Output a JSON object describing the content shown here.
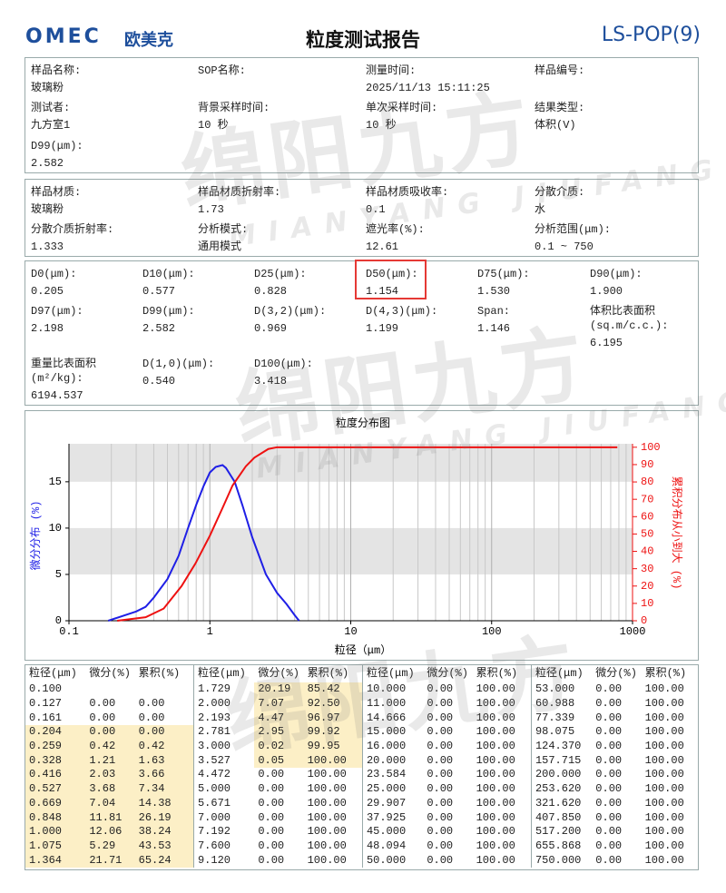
{
  "header": {
    "logo": "OMEC",
    "brand": "欧美克",
    "title": "粒度测试报告",
    "code": "LS-POP(9)"
  },
  "watermark": {
    "text": "绵阳九方",
    "subtext": "MIANYANG JIUFANG"
  },
  "sections": [
    {
      "rows": [
        [
          {
            "label": "样品名称:",
            "value": "玻璃粉"
          },
          {
            "label": "SOP名称:"
          },
          {
            "label": "测量时间:",
            "value": "2025/11/13 15:11:25"
          },
          {
            "label": "样品编号:"
          }
        ],
        [
          {
            "label": "测试者:",
            "value": "九方室1"
          },
          {
            "label": "背景采样时间:",
            "value": "10 秒"
          },
          {
            "label": "单次采样时间:",
            "value": "10 秒"
          },
          {
            "label": "结果类型:",
            "value": "体积(V)"
          }
        ],
        [
          {
            "label": "D99(μm):",
            "value": "2.582"
          }
        ]
      ]
    },
    {
      "rows": [
        [
          {
            "label": "样品材质:",
            "value": "玻璃粉"
          },
          {
            "label": "样品材质折射率:",
            "value": "1.73"
          },
          {
            "label": "样品材质吸收率:",
            "value": "0.1"
          },
          {
            "label": "分散介质:",
            "value": "水"
          }
        ],
        [
          {
            "label": "分散介质折射率:",
            "value": "1.333"
          },
          {
            "label": "分析模式:",
            "value": "通用模式"
          },
          {
            "label": "遮光率(%):",
            "value": "12.61"
          },
          {
            "label": "分析范围(μm):",
            "value": "0.1 ~ 750"
          }
        ]
      ]
    },
    {
      "rows": [
        [
          {
            "label": "D0(μm):",
            "value": "0.205"
          },
          {
            "label": "D10(μm):",
            "value": "0.577"
          },
          {
            "label": "D25(μm):",
            "value": "0.828"
          },
          {
            "label": "D50(μm):",
            "value": "1.154"
          },
          {
            "label": "D75(μm):",
            "value": "1.530"
          },
          {
            "label": "D90(μm):",
            "value": "1.900"
          }
        ],
        [
          {
            "label": "D97(μm):",
            "value": "2.198"
          },
          {
            "label": "D99(μm):",
            "value": "2.582"
          },
          {
            "label": "D(3,2)(μm):",
            "value": "0.969"
          },
          {
            "label": "D(4,3)(μm):",
            "value": "1.199"
          },
          {
            "label": "Span:",
            "value": "1.146"
          },
          {
            "label": "体积比表面积(sq.m/c.c.):",
            "value": "6.195"
          }
        ],
        [
          {
            "label": "重量比表面积(m²/kg):",
            "value": "6194.537"
          },
          {
            "label": "D(1,0)(μm):",
            "value": "0.540"
          },
          {
            "label": "D100(μm):",
            "value": "3.418"
          }
        ]
      ]
    }
  ],
  "chart_data": {
    "type": "line",
    "title": "粒度分布图",
    "x_label": "粒径（μm）",
    "y_label": "微分分布 (%)",
    "y2_label": "累积分布从小到大 (%)",
    "log_x": true,
    "grid": true,
    "xlim": [
      0.1,
      1000
    ],
    "xticks": [
      0.1,
      1,
      10,
      100,
      1000
    ],
    "ylim": [
      0,
      19.1
    ],
    "yticks": [
      0,
      5,
      10,
      15
    ],
    "y2lim": [
      0,
      102
    ],
    "y2ticks": [
      0,
      10,
      20,
      30,
      40,
      50,
      60,
      70,
      80,
      90,
      100
    ],
    "series": [
      {
        "color": "#1f1fe6",
        "axis": "y",
        "x": [
          0.19,
          0.3,
          0.35,
          0.4,
          0.5,
          0.6,
          0.7,
          0.8,
          0.9,
          1.0,
          1.1,
          1.23,
          1.3,
          1.5,
          1.7,
          2.0,
          2.5,
          3.0,
          3.5,
          4.0,
          4.3
        ],
        "values": [
          0,
          1,
          1.5,
          2.5,
          4.5,
          7,
          10,
          12.5,
          14.5,
          16,
          16.6,
          16.8,
          16.5,
          15,
          12.5,
          9,
          5,
          3,
          1.8,
          0.6,
          0
        ]
      },
      {
        "color": "#ee1111",
        "axis": "y2",
        "x": [
          0.22,
          0.35,
          0.47,
          0.63,
          0.79,
          1.0,
          1.23,
          1.45,
          1.8,
          2.07,
          2.6,
          3.0,
          780
        ],
        "values": [
          0,
          2,
          7,
          20,
          33,
          49,
          65,
          78,
          89,
          94,
          99,
          100,
          100
        ]
      }
    ]
  },
  "table": {
    "header": [
      "粒径(μm)",
      "微分(%)",
      "累积(%)"
    ],
    "groups": [
      {
        "rows": [
          [
            "0.100"
          ],
          [
            "0.127",
            "0.00",
            "0.00"
          ],
          [
            "0.161",
            "0.00",
            "0.00"
          ],
          [
            "0.204",
            "0.00",
            "0.00"
          ],
          [
            "0.259",
            "0.42",
            "0.42"
          ],
          [
            "0.328",
            "1.21",
            "1.63"
          ],
          [
            "0.416",
            "2.03",
            "3.66"
          ],
          [
            "0.527",
            "3.68",
            "7.34"
          ],
          [
            "0.669",
            "7.04",
            "14.38"
          ],
          [
            "0.848",
            "11.81",
            "26.19"
          ],
          [
            "1.000",
            "12.06",
            "38.24"
          ],
          [
            "1.075",
            "5.29",
            "43.53"
          ],
          [
            "1.364",
            "21.71",
            "65.24"
          ]
        ]
      },
      {
        "rows": [
          [
            "1.729",
            "20.19",
            "85.42"
          ],
          [
            "2.000",
            "7.07",
            "92.50"
          ],
          [
            "2.193",
            "4.47",
            "96.97"
          ],
          [
            "2.781",
            "2.95",
            "99.92"
          ],
          [
            "3.000",
            "0.02",
            "99.95"
          ],
          [
            "3.527",
            "0.05",
            "100.00"
          ],
          [
            "4.472",
            "0.00",
            "100.00"
          ],
          [
            "5.000",
            "0.00",
            "100.00"
          ],
          [
            "5.671",
            "0.00",
            "100.00"
          ],
          [
            "7.000",
            "0.00",
            "100.00"
          ],
          [
            "7.192",
            "0.00",
            "100.00"
          ],
          [
            "7.600",
            "0.00",
            "100.00"
          ],
          [
            "9.120",
            "0.00",
            "100.00"
          ]
        ]
      },
      {
        "rows": [
          [
            "10.000",
            "0.00",
            "100.00"
          ],
          [
            "11.000",
            "0.00",
            "100.00"
          ],
          [
            "14.666",
            "0.00",
            "100.00"
          ],
          [
            "15.000",
            "0.00",
            "100.00"
          ],
          [
            "16.000",
            "0.00",
            "100.00"
          ],
          [
            "20.000",
            "0.00",
            "100.00"
          ],
          [
            "23.584",
            "0.00",
            "100.00"
          ],
          [
            "25.000",
            "0.00",
            "100.00"
          ],
          [
            "29.907",
            "0.00",
            "100.00"
          ],
          [
            "37.925",
            "0.00",
            "100.00"
          ],
          [
            "45.000",
            "0.00",
            "100.00"
          ],
          [
            "48.094",
            "0.00",
            "100.00"
          ],
          [
            "50.000",
            "0.00",
            "100.00"
          ]
        ]
      },
      {
        "rows": [
          [
            "53.000",
            "0.00",
            "100.00"
          ],
          [
            "60.988",
            "0.00",
            "100.00"
          ],
          [
            "77.339",
            "0.00",
            "100.00"
          ],
          [
            "98.075",
            "0.00",
            "100.00"
          ],
          [
            "124.370",
            "0.00",
            "100.00"
          ],
          [
            "157.715",
            "0.00",
            "100.00"
          ],
          [
            "200.000",
            "0.00",
            "100.00"
          ],
          [
            "253.620",
            "0.00",
            "100.00"
          ],
          [
            "321.620",
            "0.00",
            "100.00"
          ],
          [
            "407.850",
            "0.00",
            "100.00"
          ],
          [
            "517.200",
            "0.00",
            "100.00"
          ],
          [
            "655.868",
            "0.00",
            "100.00"
          ],
          [
            "750.000",
            "0.00",
            "100.00"
          ]
        ]
      }
    ]
  }
}
